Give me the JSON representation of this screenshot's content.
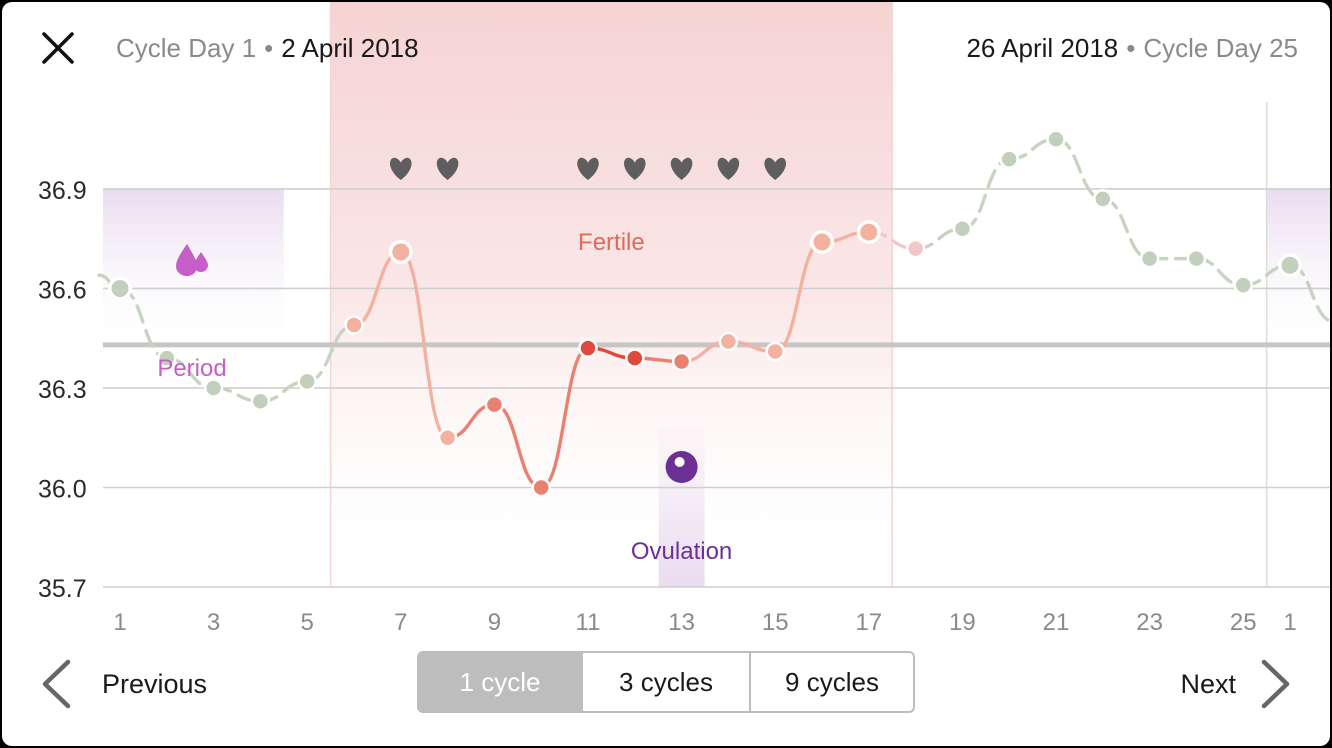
{
  "header": {
    "left_day": "Cycle Day 1",
    "left_date": "2 April 2018",
    "right_date": "26 April 2018",
    "right_day": "Cycle Day 25",
    "separator": "•"
  },
  "icons": {
    "close": "close-icon",
    "heart": "heart-icon",
    "period": "drops-icon",
    "ovulation": "egg-icon",
    "prev": "chevron-left-icon",
    "next": "chevron-right-icon"
  },
  "phases": {
    "fertile_label": "Fertile",
    "period_label": "Period",
    "ovulation_label": "Ovulation"
  },
  "controls": {
    "previous": "Previous",
    "next": "Next",
    "segments": [
      "1 cycle",
      "3 cycles",
      "9 cycles"
    ],
    "active_segment": 0
  },
  "colors": {
    "fertile": "#f6d3d3",
    "period": "#e9dcef",
    "ovulation": "#6b2f96",
    "line_normal": "#c8d4c2",
    "point_normal": "#c3cfbd",
    "fertile_light": "#f3b2a0",
    "fertile_mid": "#ea8070",
    "fertile_dark": "#df4a3e",
    "pink": "#f2c6cb",
    "heart": "#5e5e5e",
    "coverline": "#c6c6c6",
    "period_icon": "#c65ec7"
  },
  "chart_data": {
    "type": "line",
    "ylim": [
      35.7,
      37.1
    ],
    "y_ticks": [
      "36.9",
      "36.6",
      "36.3",
      "36.0",
      "35.7"
    ],
    "x_tick_labels": [
      "1",
      "3",
      "5",
      "7",
      "9",
      "11",
      "13",
      "15",
      "17",
      "19",
      "21",
      "23",
      "25",
      "1"
    ],
    "coverline": 36.43,
    "points": [
      {
        "day": 1,
        "temp": 36.6,
        "tone": "normal",
        "ring": true
      },
      {
        "day": 2,
        "temp": 36.39,
        "tone": "normal"
      },
      {
        "day": 3,
        "temp": 36.3,
        "tone": "normal"
      },
      {
        "day": 4,
        "temp": 36.26,
        "tone": "normal"
      },
      {
        "day": 5,
        "temp": 36.32,
        "tone": "normal"
      },
      {
        "day": 6,
        "temp": 36.49,
        "tone": "light"
      },
      {
        "day": 7,
        "temp": 36.71,
        "tone": "light",
        "ring": true
      },
      {
        "day": 8,
        "temp": 36.15,
        "tone": "light"
      },
      {
        "day": 9,
        "temp": 36.25,
        "tone": "mid"
      },
      {
        "day": 10,
        "temp": 36.0,
        "tone": "mid"
      },
      {
        "day": 11,
        "temp": 36.42,
        "tone": "dark"
      },
      {
        "day": 12,
        "temp": 36.39,
        "tone": "dark"
      },
      {
        "day": 13,
        "temp": 36.38,
        "tone": "mid"
      },
      {
        "day": 14,
        "temp": 36.44,
        "tone": "light"
      },
      {
        "day": 15,
        "temp": 36.41,
        "tone": "light"
      },
      {
        "day": 16,
        "temp": 36.74,
        "tone": "light",
        "ring": true
      },
      {
        "day": 17,
        "temp": 36.77,
        "tone": "light",
        "ring": true
      },
      {
        "day": 18,
        "temp": 36.72,
        "tone": "pink"
      },
      {
        "day": 19,
        "temp": 36.78,
        "tone": "normal"
      },
      {
        "day": 20,
        "temp": 36.99,
        "tone": "normal"
      },
      {
        "day": 21,
        "temp": 37.05,
        "tone": "normal"
      },
      {
        "day": 22,
        "temp": 36.87,
        "tone": "normal"
      },
      {
        "day": 23,
        "temp": 36.69,
        "tone": "normal"
      },
      {
        "day": 24,
        "temp": 36.69,
        "tone": "normal"
      },
      {
        "day": 25,
        "temp": 36.61,
        "tone": "normal"
      },
      {
        "day": 26,
        "temp": 36.67,
        "tone": "normal",
        "ring": true
      }
    ],
    "sex_days": [
      7,
      8,
      11,
      12,
      13,
      14,
      15
    ],
    "period_days": [
      1,
      4
    ],
    "fertile_days": [
      6,
      17
    ],
    "ovulation_day": 13
  }
}
